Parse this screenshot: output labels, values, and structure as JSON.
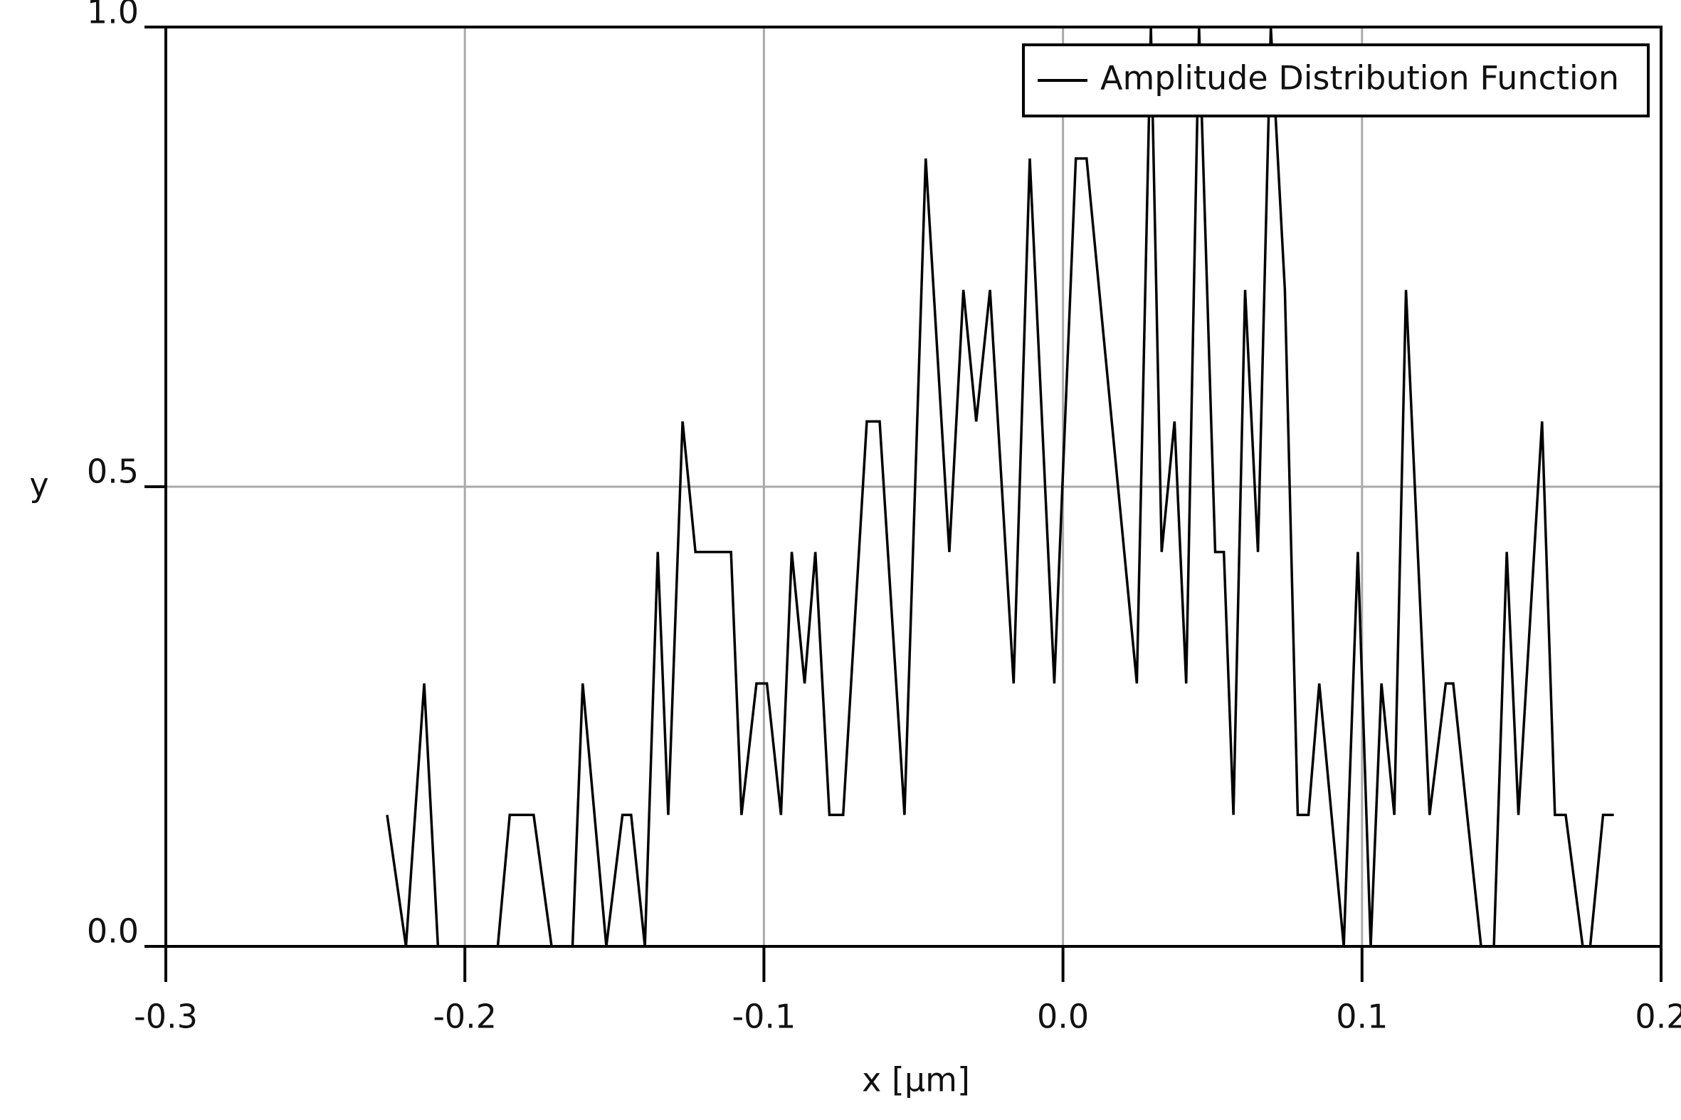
{
  "chart_data": {
    "type": "line",
    "x_label": "x [µm]",
    "y_label": "y",
    "xlim": [
      -0.3,
      0.2
    ],
    "xticks": [
      -0.3,
      -0.2,
      -0.1,
      {
        "value": 0,
        "label": "0.0"
      },
      0.1,
      0.2
    ],
    "ylim": [
      0,
      1
    ],
    "yticks": [
      {
        "value": 0,
        "label": "0.0"
      },
      0.5,
      {
        "value": 1,
        "label": "1.0"
      }
    ],
    "grid": true,
    "legend": "upper right",
    "series": [
      {
        "name": "Amplitude Distribution Function",
        "color": "#000000",
        "x": [
          -0.226,
          -0.2197,
          -0.2136,
          -0.209,
          -0.189,
          -0.185,
          -0.177,
          -0.171,
          -0.164,
          -0.1606,
          -0.1527,
          -0.1473,
          -0.1444,
          -0.1398,
          -0.1355,
          -0.132,
          -0.1272,
          -0.1229,
          -0.111,
          -0.1075,
          -0.1025,
          -0.099,
          -0.0943,
          -0.0907,
          -0.0864,
          -0.0828,
          -0.0781,
          -0.0735,
          -0.0656,
          -0.0613,
          -0.053,
          -0.0459,
          -0.038,
          -0.0333,
          -0.029,
          -0.0244,
          -0.0165,
          -0.0111,
          -0.0029,
          0.0043,
          0.0079,
          0.0247,
          0.0294,
          0.033,
          0.0373,
          0.0412,
          0.0455,
          0.0509,
          0.0538,
          0.057,
          0.0609,
          0.0652,
          0.0695,
          0.0742,
          0.0785,
          0.0821,
          0.0857,
          0.0939,
          0.0986,
          0.1029,
          0.1065,
          0.1108,
          0.1147,
          0.1226,
          0.128,
          0.1305,
          0.1398,
          0.1441,
          0.1484,
          0.1523,
          0.1602,
          0.1645,
          0.1681,
          0.1738,
          0.1763,
          0.1806,
          0.1842
        ],
        "values": [
          0.143,
          0,
          0.286,
          0,
          0,
          0.143,
          0.143,
          0,
          0,
          0.286,
          0,
          0.143,
          0.143,
          0,
          0.429,
          0.143,
          0.571,
          0.429,
          0.429,
          0.143,
          0.286,
          0.286,
          0.143,
          0.429,
          0.286,
          0.429,
          0.143,
          0.143,
          0.571,
          0.571,
          0.143,
          0.857,
          0.429,
          0.714,
          0.571,
          0.714,
          0.286,
          0.857,
          0.286,
          0.857,
          0.857,
          0.286,
          1,
          0.429,
          0.571,
          0.286,
          1,
          0.429,
          0.429,
          0.143,
          0.714,
          0.429,
          1,
          0.714,
          0.143,
          0.143,
          0.286,
          0,
          0.429,
          0,
          0.286,
          0.143,
          0.714,
          0.143,
          0.286,
          0.286,
          0,
          0,
          0.429,
          0.143,
          0.571,
          0.143,
          0.143,
          0,
          0,
          0.143,
          0.143
        ]
      }
    ]
  }
}
